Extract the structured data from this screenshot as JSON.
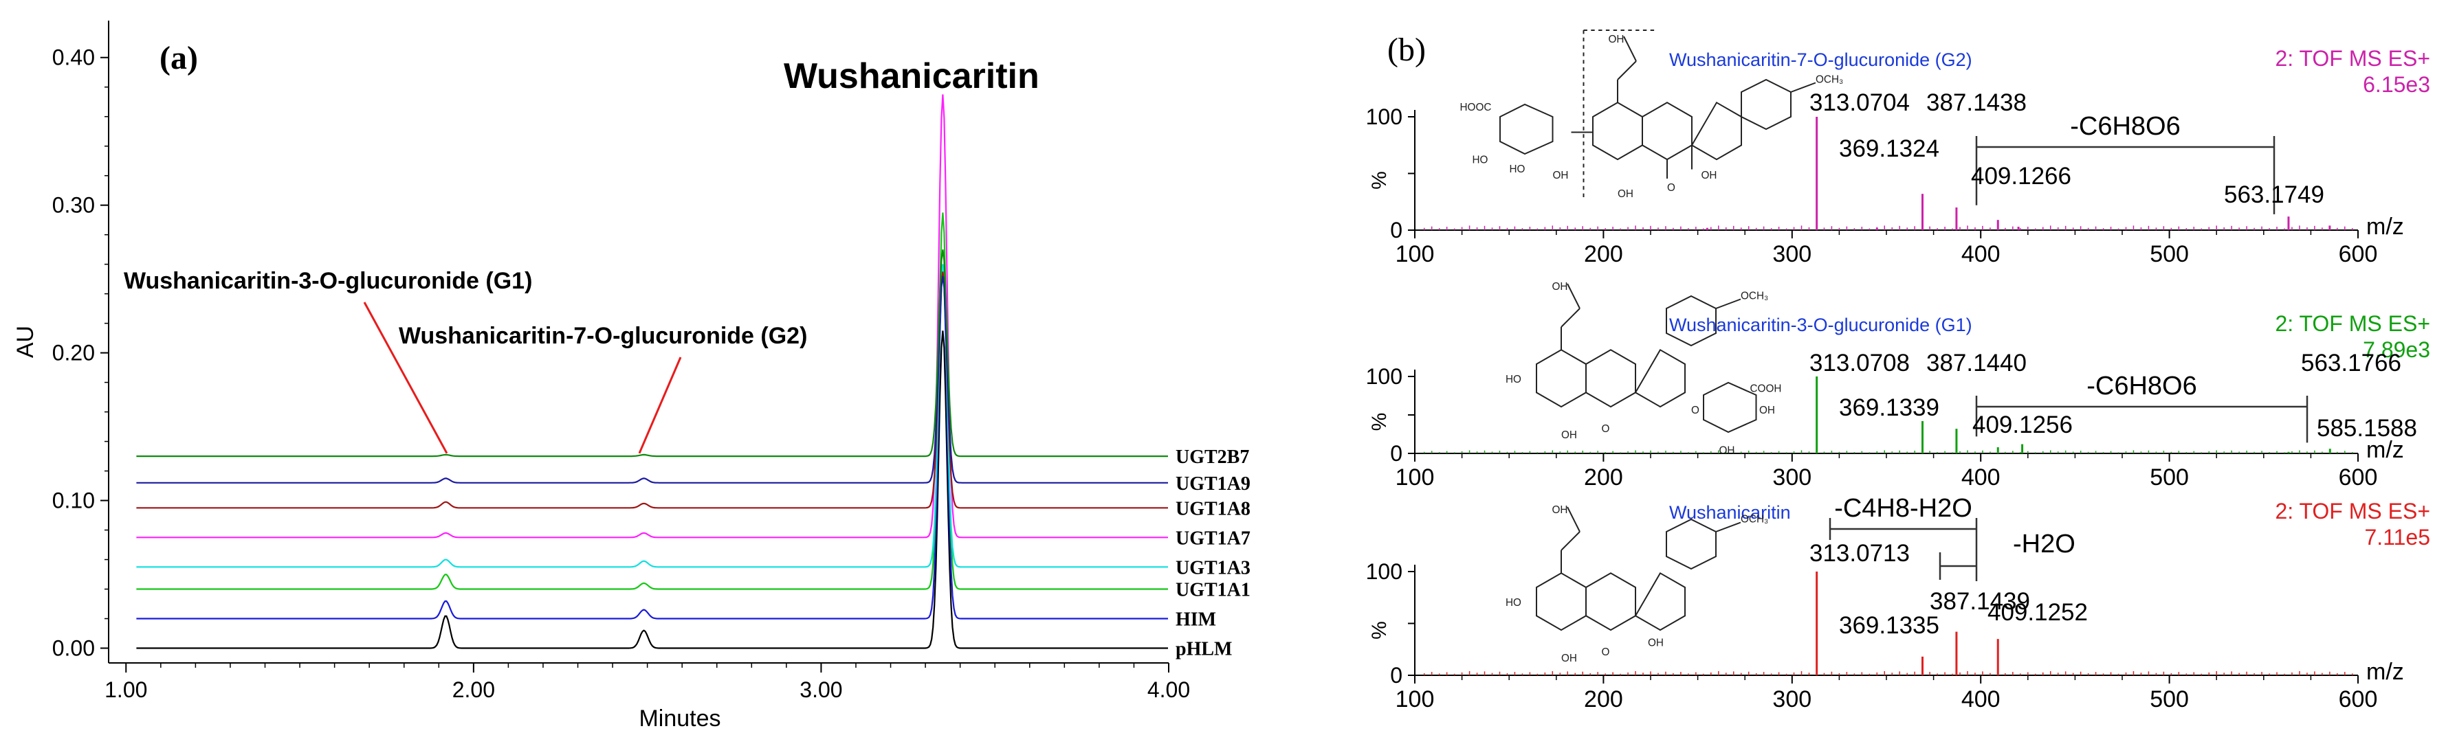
{
  "panel_a": {
    "label": "(a)",
    "ylabel": "AU",
    "xlabel": "Minutes",
    "title": "Wushanicaritin",
    "annotations": [
      {
        "text": "Wushanicaritin-3-O-glucuronide (G1)",
        "x": 1.92
      },
      {
        "text": "Wushanicaritin-7-O-glucuronide (G2)",
        "x": 2.47
      }
    ]
  },
  "panel_b": {
    "label": "(b)",
    "xlabel": "m/z",
    "ylabel": "%"
  },
  "chart_data": [
    {
      "type": "line",
      "title": "Wushanicaritin",
      "xlabel": "Minutes",
      "ylabel": "AU",
      "xlim": [
        0.95,
        4.0
      ],
      "ylim": [
        -0.01,
        0.425
      ],
      "x_ticks": [
        "1.00",
        "2.00",
        "3.00",
        "4.00"
      ],
      "y_ticks": [
        "0.00",
        "0.10",
        "0.20",
        "0.30",
        "0.40"
      ],
      "x_tick_values": [
        1.0,
        2.0,
        3.0,
        4.0
      ],
      "y_tick_values": [
        0.0,
        0.1,
        0.2,
        0.3,
        0.4
      ],
      "series": [
        {
          "name": "pHLM",
          "color": "#000000",
          "baseline": 0.0,
          "peaks": [
            [
              1.92,
              0.022
            ],
            [
              2.49,
              0.012
            ],
            [
              3.35,
              0.215
            ]
          ]
        },
        {
          "name": "HIM",
          "color": "#1a1adb",
          "baseline": 0.02,
          "peaks": [
            [
              1.92,
              0.012
            ],
            [
              2.49,
              0.006
            ],
            [
              3.35,
              0.24
            ]
          ]
        },
        {
          "name": "UGT1A1",
          "color": "#14c814",
          "baseline": 0.04,
          "peaks": [
            [
              1.92,
              0.01
            ],
            [
              2.49,
              0.004
            ],
            [
              3.35,
              0.255
            ]
          ]
        },
        {
          "name": "UGT1A3",
          "color": "#10e0e0",
          "baseline": 0.055,
          "peaks": [
            [
              1.92,
              0.005
            ],
            [
              2.49,
              0.004
            ],
            [
              3.35,
              0.205
            ]
          ]
        },
        {
          "name": "UGT1A7",
          "color": "#ff20ff",
          "baseline": 0.075,
          "peaks": [
            [
              1.92,
              0.003
            ],
            [
              2.49,
              0.003
            ],
            [
              3.35,
              0.3
            ]
          ]
        },
        {
          "name": "UGT1A8",
          "color": "#a01414",
          "baseline": 0.095,
          "peaks": [
            [
              1.92,
              0.004
            ],
            [
              2.49,
              0.003
            ],
            [
              3.35,
              0.16
            ]
          ]
        },
        {
          "name": "UGT1A9",
          "color": "#1a1aa0",
          "baseline": 0.112,
          "peaks": [
            [
              1.92,
              0.003
            ],
            [
              2.49,
              0.003
            ],
            [
              3.35,
              0.14
            ]
          ]
        },
        {
          "name": "UGT2B7",
          "color": "#108a10",
          "baseline": 0.13,
          "peaks": [
            [
              1.92,
              0.001
            ],
            [
              2.49,
              0.001
            ],
            [
              3.35,
              0.14
            ]
          ]
        }
      ]
    },
    {
      "type": "bar",
      "title": "Wushanicaritin-7-O-glucuronide (G2)",
      "xlabel": "m/z",
      "ylabel": "%",
      "xlim": [
        100,
        600
      ],
      "ylim": [
        0,
        100
      ],
      "x_ticks": [
        "100",
        "200",
        "300",
        "400",
        "500",
        "600"
      ],
      "y_ticks": [
        "0",
        "50",
        "100"
      ],
      "color": "#cc22aa",
      "mode": "2: TOF MS ES+",
      "intensity": "6.15e3",
      "loss": "-C6H8O6",
      "peaks": [
        [
          313.0704,
          100
        ],
        [
          369.1324,
          32
        ],
        [
          387.1438,
          20
        ],
        [
          409.1266,
          9
        ],
        [
          563.1749,
          12
        ],
        [
          585,
          4
        ],
        [
          345,
          2
        ],
        [
          420,
          3
        ],
        [
          255,
          2
        ]
      ],
      "labels": [
        "313.0704",
        "387.1438",
        "369.1324",
        "409.1266",
        "563.1749"
      ]
    },
    {
      "type": "bar",
      "title": "Wushanicaritin-3-O-glucuronide (G1)",
      "xlabel": "m/z",
      "ylabel": "%",
      "xlim": [
        100,
        600
      ],
      "ylim": [
        0,
        100
      ],
      "x_ticks": [
        "100",
        "200",
        "300",
        "400",
        "500",
        "600"
      ],
      "y_ticks": [
        "0",
        "50",
        "100"
      ],
      "color": "#10a010",
      "mode": "2: TOF MS ES+",
      "intensity": "7.89e3",
      "loss": "-C6H8O6",
      "peaks": [
        [
          313.0708,
          100
        ],
        [
          369.1339,
          42
        ],
        [
          387.144,
          32
        ],
        [
          409.1256,
          8
        ],
        [
          422,
          12
        ],
        [
          563.1766,
          2
        ],
        [
          585.1588,
          6
        ]
      ],
      "labels": [
        "313.0708",
        "387.1440",
        "369.1339",
        "409.1256",
        "563.1766",
        "585.1588"
      ]
    },
    {
      "type": "bar",
      "title": "Wushanicaritin",
      "xlabel": "m/z",
      "ylabel": "%",
      "xlim": [
        100,
        600
      ],
      "ylim": [
        0,
        100
      ],
      "x_ticks": [
        "100",
        "200",
        "300",
        "400",
        "500",
        "600"
      ],
      "y_ticks": [
        "0",
        "50",
        "100"
      ],
      "color": "#e02020",
      "mode": "2: TOF MS ES+",
      "intensity": "7.11e5",
      "loss": "-C4H8-H2O",
      "loss2": "-H2O",
      "peaks": [
        [
          313.0713,
          100
        ],
        [
          369.1335,
          18
        ],
        [
          387.1439,
          42
        ],
        [
          409.1252,
          35
        ]
      ],
      "labels": [
        "313.0713",
        "387.1439",
        "369.1335",
        "409.1252"
      ]
    }
  ]
}
